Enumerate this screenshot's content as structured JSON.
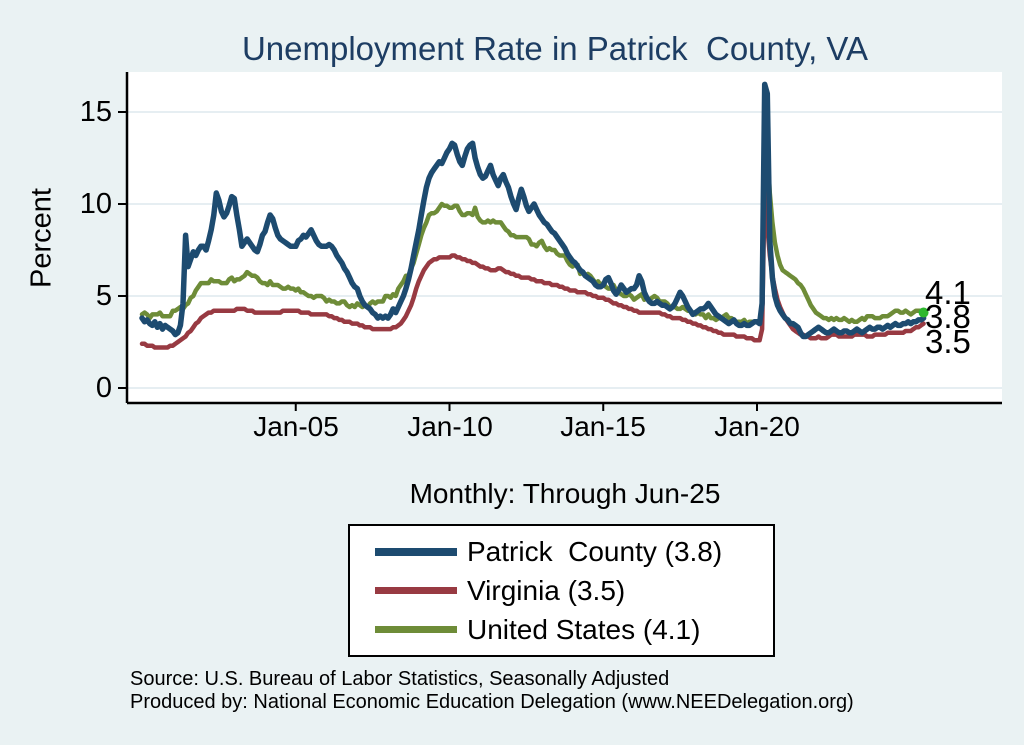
{
  "title": "Unemployment Rate in Patrick  County, VA",
  "subtitle": "Monthly: Through Jun-25",
  "y_axis": {
    "label": "Percent",
    "ticks": [
      "0",
      "5",
      "10",
      "15"
    ]
  },
  "x_axis": {
    "tick_labels": [
      "Jan-05",
      "Jan-10",
      "Jan-15",
      "Jan-20"
    ]
  },
  "end_labels": [
    "4.1",
    "3.8",
    "3.5"
  ],
  "legend": [
    {
      "label": "Patrick  County (3.8)",
      "color": "#1d4b70"
    },
    {
      "label": "Virginia (3.5)",
      "color": "#983a42"
    },
    {
      "label": "United States (4.1)",
      "color": "#6e8c38"
    }
  ],
  "footnotes": [
    "Source: U.S. Bureau of Labor Statistics, Seasonally Adjusted",
    "Produced by: National Economic Education Delegation (www.NEEDelegation.org)"
  ],
  "colors": {
    "background": "#eaf2f3",
    "plot_background": "#ffffff",
    "grid": "#dde9ed",
    "title_text": "#1d3d63",
    "end_marker": "#2eb82e"
  },
  "chart_data": {
    "type": "line",
    "title": "Unemployment Rate in Patrick  County, VA",
    "ylabel": "Percent",
    "ylim": [
      0,
      17.2
    ],
    "y_ticks": [
      0,
      5,
      10,
      15
    ],
    "frequency": "monthly",
    "x_start": "2000-01",
    "x_end": "2025-06",
    "x_tick_months": [
      "2005-01",
      "2010-01",
      "2015-01",
      "2020-01"
    ],
    "grid": true,
    "legend_position": "below",
    "series": [
      {
        "name": "United States",
        "final_value": 4.1,
        "color": "#6e8c38",
        "width": 4.5,
        "values": [
          4.0,
          4.1,
          4.0,
          3.8,
          4.0,
          4.0,
          4.0,
          4.1,
          3.9,
          3.9,
          3.9,
          3.9,
          4.2,
          4.2,
          4.3,
          4.4,
          4.3,
          4.5,
          4.6,
          4.9,
          5.0,
          5.3,
          5.5,
          5.7,
          5.7,
          5.7,
          5.7,
          5.9,
          5.8,
          5.8,
          5.8,
          5.7,
          5.7,
          5.7,
          5.9,
          6.0,
          5.8,
          5.9,
          5.9,
          6.0,
          6.1,
          6.3,
          6.2,
          6.1,
          6.1,
          6.0,
          5.8,
          5.7,
          5.7,
          5.6,
          5.8,
          5.6,
          5.6,
          5.6,
          5.5,
          5.4,
          5.4,
          5.5,
          5.4,
          5.4,
          5.3,
          5.4,
          5.2,
          5.2,
          5.1,
          5.0,
          5.0,
          4.9,
          5.0,
          5.0,
          5.0,
          4.9,
          4.7,
          4.8,
          4.7,
          4.7,
          4.6,
          4.6,
          4.7,
          4.7,
          4.5,
          4.4,
          4.5,
          4.4,
          4.6,
          4.5,
          4.4,
          4.5,
          4.4,
          4.6,
          4.7,
          4.6,
          4.7,
          4.7,
          4.7,
          5.0,
          5.0,
          4.9,
          5.1,
          5.0,
          5.4,
          5.6,
          5.8,
          6.1,
          6.1,
          6.5,
          6.8,
          7.3,
          7.8,
          8.3,
          8.7,
          9.0,
          9.4,
          9.5,
          9.5,
          9.6,
          9.8,
          10.0,
          9.9,
          9.9,
          9.8,
          9.8,
          9.9,
          9.9,
          9.6,
          9.4,
          9.4,
          9.5,
          9.5,
          9.4,
          9.8,
          9.3,
          9.1,
          9.0,
          9.0,
          9.1,
          9.0,
          9.1,
          9.0,
          9.0,
          9.0,
          8.8,
          8.6,
          8.5,
          8.3,
          8.3,
          8.2,
          8.2,
          8.2,
          8.2,
          8.2,
          8.1,
          7.8,
          7.8,
          7.7,
          7.9,
          8.0,
          7.7,
          7.5,
          7.6,
          7.5,
          7.5,
          7.3,
          7.2,
          7.2,
          7.2,
          6.9,
          6.7,
          6.6,
          6.7,
          6.7,
          6.2,
          6.3,
          6.1,
          6.2,
          6.1,
          5.9,
          5.7,
          5.8,
          5.6,
          5.7,
          5.5,
          5.4,
          5.4,
          5.6,
          5.3,
          5.2,
          5.1,
          5.0,
          5.0,
          5.1,
          5.0,
          4.8,
          4.9,
          5.0,
          5.1,
          4.8,
          4.9,
          4.8,
          4.9,
          5.0,
          4.9,
          4.7,
          4.7,
          4.7,
          4.6,
          4.4,
          4.4,
          4.4,
          4.3,
          4.3,
          4.4,
          4.3,
          4.2,
          4.2,
          4.1,
          4.0,
          4.1,
          4.0,
          4.0,
          3.8,
          4.0,
          3.8,
          3.8,
          3.7,
          3.8,
          3.8,
          3.9,
          4.0,
          3.8,
          3.8,
          3.7,
          3.6,
          3.6,
          3.6,
          3.7,
          3.5,
          3.6,
          3.6,
          3.6,
          3.6,
          3.5,
          4.4,
          14.8,
          13.0,
          10.6,
          9.0,
          7.9,
          7.2,
          6.7,
          6.4,
          6.3,
          6.2,
          6.1,
          6.0,
          5.9,
          5.7,
          5.6,
          5.4,
          5.1,
          4.8,
          4.5,
          4.3,
          4.1,
          4.0,
          3.9,
          3.8,
          3.8,
          3.7,
          3.8,
          3.7,
          3.8,
          3.7,
          3.7,
          3.8,
          3.7,
          3.6,
          3.7,
          3.6,
          3.6,
          3.7,
          3.8,
          3.7,
          3.9,
          3.9,
          3.9,
          3.8,
          3.8,
          3.8,
          3.9,
          3.9,
          3.9,
          4.0,
          4.1,
          4.2,
          4.2,
          4.1,
          4.1,
          4.2,
          4.1,
          4.0,
          4.1,
          4.2,
          4.2,
          4.2,
          4.1
        ]
      },
      {
        "name": "Virginia",
        "final_value": 3.5,
        "color": "#983a42",
        "width": 4.5,
        "values": [
          2.4,
          2.4,
          2.3,
          2.3,
          2.3,
          2.2,
          2.2,
          2.2,
          2.2,
          2.2,
          2.2,
          2.3,
          2.3,
          2.4,
          2.5,
          2.6,
          2.7,
          2.8,
          3.0,
          3.1,
          3.3,
          3.5,
          3.6,
          3.8,
          3.9,
          4.0,
          4.1,
          4.1,
          4.2,
          4.2,
          4.2,
          4.2,
          4.2,
          4.2,
          4.2,
          4.2,
          4.2,
          4.3,
          4.3,
          4.3,
          4.3,
          4.2,
          4.2,
          4.2,
          4.1,
          4.1,
          4.1,
          4.1,
          4.1,
          4.1,
          4.1,
          4.1,
          4.1,
          4.1,
          4.1,
          4.2,
          4.2,
          4.2,
          4.2,
          4.2,
          4.2,
          4.2,
          4.1,
          4.1,
          4.1,
          4.1,
          4.0,
          4.0,
          4.0,
          4.0,
          4.0,
          4.0,
          4.0,
          3.9,
          3.9,
          3.8,
          3.8,
          3.7,
          3.7,
          3.6,
          3.6,
          3.6,
          3.5,
          3.5,
          3.5,
          3.4,
          3.4,
          3.3,
          3.3,
          3.3,
          3.2,
          3.2,
          3.2,
          3.2,
          3.2,
          3.2,
          3.2,
          3.2,
          3.3,
          3.3,
          3.4,
          3.5,
          3.7,
          3.9,
          4.2,
          4.5,
          4.9,
          5.4,
          5.8,
          6.1,
          6.4,
          6.6,
          6.8,
          6.9,
          7.0,
          7.0,
          7.1,
          7.1,
          7.1,
          7.1,
          7.1,
          7.2,
          7.2,
          7.1,
          7.1,
          7.0,
          7.0,
          6.9,
          6.9,
          6.8,
          6.8,
          6.7,
          6.6,
          6.6,
          6.5,
          6.5,
          6.4,
          6.4,
          6.4,
          6.5,
          6.5,
          6.4,
          6.3,
          6.3,
          6.2,
          6.2,
          6.1,
          6.1,
          6.0,
          6.0,
          6.0,
          6.0,
          5.9,
          5.9,
          5.8,
          5.8,
          5.8,
          5.7,
          5.7,
          5.7,
          5.6,
          5.6,
          5.6,
          5.5,
          5.5,
          5.4,
          5.4,
          5.3,
          5.3,
          5.3,
          5.2,
          5.2,
          5.2,
          5.2,
          5.1,
          5.1,
          5.0,
          5.0,
          4.9,
          4.9,
          4.9,
          4.8,
          4.8,
          4.7,
          4.6,
          4.6,
          4.5,
          4.5,
          4.4,
          4.4,
          4.3,
          4.3,
          4.2,
          4.2,
          4.1,
          4.1,
          4.1,
          4.1,
          4.1,
          4.1,
          4.1,
          4.1,
          4.1,
          4.0,
          4.0,
          3.9,
          3.9,
          3.8,
          3.8,
          3.8,
          3.8,
          3.7,
          3.7,
          3.6,
          3.6,
          3.5,
          3.5,
          3.4,
          3.4,
          3.3,
          3.3,
          3.2,
          3.2,
          3.1,
          3.1,
          3.0,
          3.0,
          2.9,
          2.9,
          2.9,
          2.9,
          2.9,
          2.8,
          2.8,
          2.8,
          2.8,
          2.7,
          2.7,
          2.7,
          2.6,
          2.6,
          2.6,
          3.2,
          11.0,
          8.8,
          7.2,
          6.1,
          5.4,
          4.8,
          4.4,
          4.1,
          3.8,
          3.6,
          3.4,
          3.2,
          3.1,
          3.0,
          2.9,
          2.9,
          2.8,
          2.8,
          2.7,
          2.7,
          2.7,
          2.8,
          2.7,
          2.7,
          2.7,
          2.8,
          2.9,
          2.9,
          2.9,
          2.8,
          2.8,
          2.8,
          2.8,
          2.8,
          2.8,
          2.9,
          2.9,
          2.9,
          2.9,
          2.9,
          2.8,
          2.8,
          2.8,
          2.9,
          2.9,
          2.9,
          2.9,
          2.9,
          3.0,
          3.0,
          3.0,
          3.0,
          3.0,
          3.0,
          3.0,
          3.1,
          3.1,
          3.1,
          3.2,
          3.3,
          3.3,
          3.4,
          3.5
        ]
      },
      {
        "name": "Patrick County",
        "final_value": 3.8,
        "color": "#1d4b70",
        "width": 5.5,
        "values": [
          3.8,
          3.6,
          3.7,
          3.5,
          3.4,
          3.6,
          3.3,
          3.5,
          3.2,
          3.4,
          3.3,
          3.2,
          3.1,
          2.9,
          3.0,
          3.4,
          4.6,
          8.3,
          6.6,
          7.0,
          7.4,
          7.2,
          7.5,
          7.7,
          7.7,
          7.5,
          8.0,
          8.6,
          9.4,
          10.6,
          10.2,
          9.6,
          9.3,
          9.5,
          9.9,
          10.4,
          10.3,
          9.4,
          8.6,
          7.7,
          7.9,
          8.1,
          7.9,
          7.7,
          7.5,
          7.4,
          7.8,
          8.3,
          8.5,
          9.0,
          9.4,
          9.2,
          8.7,
          8.3,
          8.1,
          8.0,
          7.9,
          7.8,
          7.7,
          7.7,
          7.7,
          8.0,
          8.1,
          8.3,
          8.2,
          8.4,
          8.6,
          8.3,
          8.0,
          7.8,
          7.7,
          7.7,
          7.7,
          7.8,
          7.7,
          7.5,
          7.2,
          7.0,
          6.8,
          6.5,
          6.3,
          6.0,
          5.7,
          5.5,
          5.4,
          5.0,
          4.7,
          4.5,
          4.4,
          4.3,
          4.1,
          4.0,
          3.8,
          3.9,
          3.8,
          3.9,
          3.8,
          4.0,
          4.3,
          4.1,
          4.4,
          4.7,
          5.0,
          5.4,
          5.9,
          6.5,
          7.2,
          7.9,
          8.6,
          9.4,
          10.2,
          10.9,
          11.4,
          11.7,
          11.9,
          12.1,
          12.3,
          12.2,
          12.5,
          12.8,
          13.0,
          13.3,
          13.2,
          12.7,
          12.3,
          12.1,
          12.6,
          13.0,
          13.2,
          13.3,
          12.5,
          12.0,
          11.6,
          11.4,
          11.5,
          11.8,
          12.1,
          11.6,
          11.3,
          11.0,
          11.4,
          11.6,
          11.2,
          10.9,
          10.4,
          10.0,
          9.7,
          10.3,
          10.8,
          10.4,
          9.9,
          9.6,
          9.8,
          10.0,
          9.7,
          9.4,
          9.2,
          9.0,
          8.9,
          8.7,
          8.5,
          8.4,
          8.2,
          8.0,
          7.8,
          7.6,
          7.3,
          7.1,
          6.9,
          6.8,
          6.6,
          6.4,
          6.3,
          6.1,
          6.0,
          5.9,
          5.8,
          5.6,
          5.5,
          5.5,
          5.6,
          5.9,
          6.0,
          5.7,
          5.3,
          5.1,
          5.3,
          5.6,
          5.4,
          5.2,
          5.3,
          5.4,
          5.4,
          5.6,
          6.1,
          5.8,
          5.2,
          4.9,
          4.7,
          4.6,
          4.6,
          4.7,
          4.6,
          4.5,
          4.5,
          4.4,
          4.3,
          4.4,
          4.6,
          4.9,
          5.2,
          5.0,
          4.7,
          4.4,
          4.2,
          4.0,
          4.1,
          4.2,
          4.3,
          4.3,
          4.4,
          4.6,
          4.4,
          4.2,
          4.0,
          3.9,
          3.8,
          3.7,
          3.6,
          3.5,
          3.6,
          3.7,
          3.5,
          3.4,
          3.4,
          3.5,
          3.4,
          3.4,
          3.5,
          3.6,
          3.6,
          3.5,
          4.6,
          16.5,
          16.0,
          8.0,
          6.0,
          5.0,
          4.5,
          4.2,
          4.0,
          3.8,
          3.7,
          3.5,
          3.5,
          3.4,
          3.3,
          3.0,
          2.8,
          2.8,
          2.9,
          3.0,
          3.1,
          3.2,
          3.3,
          3.2,
          3.1,
          3.0,
          3.0,
          3.1,
          3.2,
          3.1,
          3.0,
          3.0,
          3.1,
          3.1,
          3.0,
          3.0,
          3.1,
          3.2,
          3.1,
          3.0,
          3.1,
          3.2,
          3.3,
          3.2,
          3.2,
          3.3,
          3.3,
          3.2,
          3.3,
          3.4,
          3.3,
          3.4,
          3.5,
          3.4,
          3.4,
          3.5,
          3.5,
          3.6,
          3.5,
          3.6,
          3.6,
          3.7,
          3.7,
          3.8
        ]
      }
    ],
    "end_point_marker": {
      "series": "United States",
      "color": "#2eb82e"
    }
  }
}
